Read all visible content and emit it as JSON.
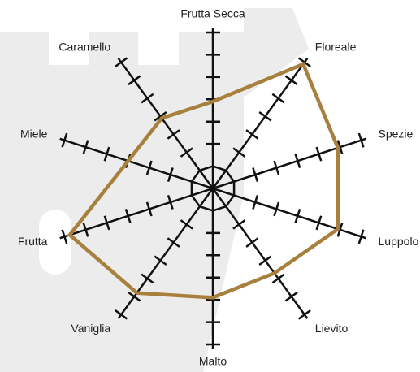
{
  "chart_data": {
    "type": "radar",
    "categories": [
      "Frutta Secca",
      "Floreale",
      "Spezie",
      "Luppolo",
      "Lievito",
      "Malto",
      "Vaniglia",
      "Frutta",
      "Miele",
      "Caramello"
    ],
    "values": [
      3.9,
      6.9,
      5.9,
      5.9,
      4.7,
      4.9,
      5.8,
      6.75,
      4.0,
      3.9
    ],
    "color": "#a8803d",
    "rlim": [
      0,
      7
    ],
    "rticks": [
      1,
      2,
      3,
      4,
      5,
      6,
      7
    ]
  }
}
